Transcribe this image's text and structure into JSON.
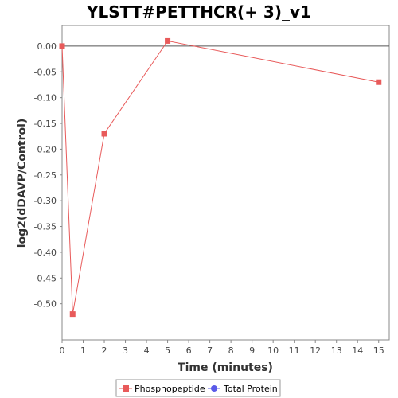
{
  "chart_data": {
    "type": "line",
    "title": "YLSTT#PETTHCR(+ 3)_v1",
    "xlabel": "Time (minutes)",
    "ylabel": "log2(dDAVP/Control)",
    "xlim": [
      0,
      15.5
    ],
    "ylim": [
      -0.57,
      0.04
    ],
    "xticks": [
      0,
      1,
      2,
      3,
      4,
      5,
      6,
      7,
      8,
      9,
      10,
      11,
      12,
      13,
      14,
      15
    ],
    "yticks": [
      0.0,
      -0.05,
      -0.1,
      -0.15,
      -0.2,
      -0.25,
      -0.3,
      -0.35,
      -0.4,
      -0.45,
      -0.5
    ],
    "ytick_labels": [
      "0.00",
      "-0.05",
      "-0.10",
      "-0.15",
      "-0.20",
      "-0.25",
      "-0.30",
      "-0.35",
      "-0.40",
      "-0.45",
      "-0.50"
    ],
    "zero_line": true,
    "grid": false,
    "legend_position": "bottom-center",
    "series": [
      {
        "name": "Phosphopeptide",
        "color": "#e85a5a",
        "marker": "square",
        "x": [
          0,
          0.5,
          2,
          5,
          15
        ],
        "y": [
          0.0,
          -0.52,
          -0.17,
          0.01,
          -0.07
        ]
      },
      {
        "name": "Total Protein",
        "color": "#5a5ae8",
        "marker": "circle",
        "x": [],
        "y": []
      }
    ]
  }
}
